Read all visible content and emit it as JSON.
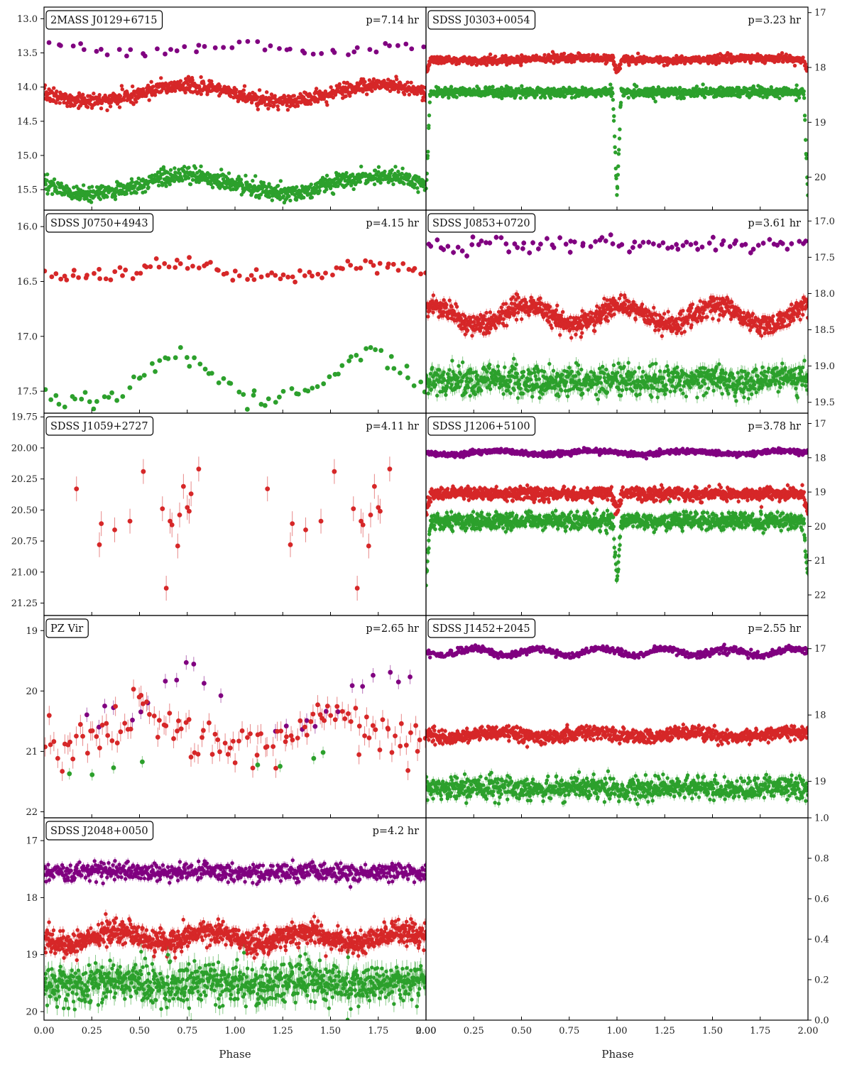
{
  "figure": {
    "xlabel": "Phase",
    "x_ticks": [
      0.0,
      0.25,
      0.5,
      0.75,
      1.0,
      1.25,
      1.5,
      1.75,
      2.0
    ],
    "colors": {
      "purple": "#800080",
      "red": "#d62728",
      "green": "#2ca02c"
    }
  },
  "chart_data": [
    {
      "type": "scatter",
      "name": "2MASS J0129+6715",
      "period": "p=7.14 hr",
      "xlim": [
        0,
        2
      ],
      "ylim": [
        15.8,
        12.83
      ],
      "y_inverted": true,
      "y_axis_side": "left",
      "y_ticks": [
        "13.0",
        "13.5",
        "14.0",
        "14.5",
        "15.0",
        "15.5"
      ],
      "errorbars": false,
      "series": [
        {
          "color": "purple",
          "model": "sine",
          "mean": 13.45,
          "amp": 0.06,
          "cycles": 1,
          "phase_offset": 0.25,
          "scatter": 0.04,
          "count": 50
        },
        {
          "color": "red",
          "model": "sine",
          "mean": 14.09,
          "amp": 0.12,
          "cycles": 1,
          "phase_offset": 0.0,
          "scatter": 0.05,
          "count": 900
        },
        {
          "color": "green",
          "model": "sine",
          "mean": 15.42,
          "amp": 0.13,
          "cycles": 1,
          "phase_offset": 0.0,
          "scatter": 0.06,
          "count": 900
        }
      ]
    },
    {
      "type": "scatter",
      "name": "SDSS J0303+0054",
      "period": "p=3.23 hr",
      "xlim": [
        0,
        2
      ],
      "ylim": [
        20.6,
        16.9
      ],
      "y_inverted": true,
      "y_axis_side": "right",
      "y_ticks": [
        "17",
        "18",
        "19",
        "20"
      ],
      "errorbars": true,
      "series": [
        {
          "color": "red",
          "model": "eclipse",
          "mean": 17.85,
          "amp": 0.02,
          "cycles": 1,
          "phase_offset": 0.0,
          "scatter": 0.035,
          "count": 1000,
          "eclipse_depth": 0.25,
          "eclipse_width": 0.025
        },
        {
          "color": "green",
          "model": "eclipse",
          "mean": 18.45,
          "amp": 0.0,
          "cycles": 1,
          "phase_offset": 0.0,
          "scatter": 0.045,
          "count": 1000,
          "eclipse_depth": 1.9,
          "eclipse_width": 0.022
        }
      ]
    },
    {
      "type": "scatter",
      "name": "SDSS J0750+4943",
      "period": "p=4.15 hr",
      "xlim": [
        0,
        2
      ],
      "ylim": [
        17.7,
        15.85
      ],
      "y_inverted": true,
      "y_axis_side": "left",
      "y_ticks": [
        "16.0",
        "16.5",
        "17.0",
        "17.5"
      ],
      "errorbars": false,
      "series": [
        {
          "color": "red",
          "model": "hump",
          "mean": 16.45,
          "amp": 0.12,
          "cycles": 1,
          "phase_offset": 0.2,
          "scatter": 0.04,
          "count": 90
        },
        {
          "color": "green",
          "model": "hump",
          "mean": 17.57,
          "amp": 0.42,
          "cycles": 1,
          "phase_offset": 0.2,
          "scatter": 0.05,
          "count": 80
        }
      ]
    },
    {
      "type": "scatter",
      "name": "SDSS J0853+0720",
      "period": "p=3.61 hr",
      "xlim": [
        0,
        2
      ],
      "ylim": [
        19.65,
        16.85
      ],
      "y_inverted": true,
      "y_axis_side": "right",
      "y_ticks": [
        "17.0",
        "17.5",
        "18.0",
        "18.5",
        "19.0",
        "19.5"
      ],
      "errorbars": true,
      "series": [
        {
          "color": "purple",
          "model": "sine",
          "mean": 17.32,
          "amp": 0.03,
          "cycles": 2,
          "phase_offset": 0.0,
          "scatter": 0.05,
          "count": 90
        },
        {
          "color": "red",
          "model": "sine",
          "mean": 18.3,
          "amp": 0.13,
          "cycles": 2,
          "phase_offset": 0.15,
          "scatter": 0.07,
          "count": 1000
        },
        {
          "color": "green",
          "model": "sine",
          "mean": 19.2,
          "amp": 0.02,
          "cycles": 2,
          "phase_offset": 0.0,
          "scatter": 0.1,
          "count": 900
        }
      ]
    },
    {
      "type": "scatter",
      "name": "SDSS J1059+2727",
      "period": "p=4.11 hr",
      "xlim": [
        0,
        2
      ],
      "ylim": [
        21.35,
        19.72
      ],
      "y_inverted": true,
      "y_axis_side": "left",
      "y_ticks": [
        "19.75",
        "20.00",
        "20.25",
        "20.50",
        "20.75",
        "21.00",
        "21.25"
      ],
      "errorbars": true,
      "series": [
        {
          "color": "red",
          "model": "points",
          "err": 0.1,
          "x": [
            0.17,
            0.29,
            0.3,
            0.37,
            0.45,
            0.52,
            0.62,
            0.64,
            0.66,
            0.67,
            0.7,
            0.71,
            0.73,
            0.75,
            0.76,
            0.77,
            0.81,
            1.17,
            1.29,
            1.3,
            1.37,
            1.45,
            1.52,
            1.62,
            1.64,
            1.66,
            1.67,
            1.7,
            1.71,
            1.73,
            1.75,
            1.76,
            1.81
          ],
          "y": [
            20.33,
            20.78,
            20.61,
            20.66,
            20.59,
            20.19,
            20.49,
            21.13,
            20.59,
            20.62,
            20.79,
            20.54,
            20.31,
            20.48,
            20.51,
            20.37,
            20.17,
            20.33,
            20.78,
            20.61,
            20.66,
            20.59,
            20.19,
            20.49,
            21.13,
            20.59,
            20.62,
            20.79,
            20.54,
            20.31,
            20.48,
            20.51,
            20.17
          ]
        }
      ]
    },
    {
      "type": "scatter",
      "name": "SDSS J1206+5100",
      "period": "p=3.78 hr",
      "xlim": [
        0,
        2
      ],
      "ylim": [
        22.6,
        16.7
      ],
      "y_inverted": true,
      "y_axis_side": "right",
      "y_ticks": [
        "17",
        "18",
        "19",
        "20",
        "21",
        "22"
      ],
      "errorbars": true,
      "series": [
        {
          "color": "purple",
          "model": "sine",
          "mean": 17.85,
          "amp": 0.05,
          "cycles": 2,
          "phase_offset": 0.0,
          "scatter": 0.035,
          "count": 900
        },
        {
          "color": "red",
          "model": "eclipse",
          "mean": 19.05,
          "amp": 0.0,
          "cycles": 1,
          "phase_offset": 0.0,
          "scatter": 0.09,
          "count": 1100,
          "eclipse_depth": 0.6,
          "eclipse_width": 0.025
        },
        {
          "color": "green",
          "model": "eclipse",
          "mean": 19.85,
          "amp": 0.0,
          "cycles": 1,
          "phase_offset": 0.0,
          "scatter": 0.12,
          "count": 1100,
          "eclipse_depth": 1.8,
          "eclipse_width": 0.022
        }
      ]
    },
    {
      "type": "scatter",
      "name": "PZ Vir",
      "period": "p=2.65 hr",
      "xlim": [
        0,
        2
      ],
      "ylim": [
        22.1,
        18.75
      ],
      "y_inverted": true,
      "y_axis_side": "left",
      "y_ticks": [
        "19",
        "20",
        "21",
        "22"
      ],
      "errorbars": true,
      "series": [
        {
          "color": "purple",
          "model": "hump",
          "mean": 20.55,
          "amp": 0.9,
          "cycles": 1,
          "phase_offset": 0.25,
          "scatter": 0.15,
          "count": 34,
          "window": [
            0.18,
            0.95
          ]
        },
        {
          "color": "red",
          "model": "hump",
          "mean": 20.9,
          "amp": 0.55,
          "cycles": 1,
          "phase_offset": 0.0,
          "scatter": 0.2,
          "count": 120
        },
        {
          "color": "green",
          "model": "hump",
          "mean": 21.4,
          "amp": 0.3,
          "cycles": 1,
          "phase_offset": 0.0,
          "scatter": 0.12,
          "count": 18,
          "window": [
            0.05,
            0.55
          ]
        }
      ]
    },
    {
      "type": "scatter",
      "name": "SDSS J1452+2045",
      "period": "p=2.55 hr",
      "xlim": [
        0,
        2
      ],
      "ylim": [
        19.55,
        16.5
      ],
      "y_inverted": true,
      "y_axis_side": "right",
      "y_ticks": [
        "17",
        "18",
        "19"
      ],
      "errorbars": true,
      "series": [
        {
          "color": "purple",
          "model": "sine",
          "mean": 17.05,
          "amp": 0.05,
          "cycles": 3,
          "phase_offset": 0.0,
          "scatter": 0.025,
          "count": 600
        },
        {
          "color": "red",
          "model": "sine",
          "mean": 18.3,
          "amp": 0.04,
          "cycles": 2,
          "phase_offset": 0.0,
          "scatter": 0.05,
          "count": 1000
        },
        {
          "color": "green",
          "model": "sine",
          "mean": 19.1,
          "amp": 0.02,
          "cycles": 2,
          "phase_offset": 0.0,
          "scatter": 0.08,
          "count": 900
        }
      ]
    },
    {
      "type": "scatter",
      "name": "SDSS J2048+0050",
      "period": "p=4.2 hr",
      "xlim": [
        0,
        2
      ],
      "ylim": [
        20.15,
        16.6
      ],
      "y_inverted": true,
      "y_axis_side": "left",
      "y_ticks": [
        "17",
        "18",
        "19",
        "20"
      ],
      "errorbars": true,
      "series": [
        {
          "color": "purple",
          "model": "sine",
          "mean": 17.55,
          "amp": 0.02,
          "cycles": 2,
          "phase_offset": 0.0,
          "scatter": 0.08,
          "count": 700
        },
        {
          "color": "red",
          "model": "sine",
          "mean": 18.7,
          "amp": 0.1,
          "cycles": 2,
          "phase_offset": 0.0,
          "scatter": 0.1,
          "count": 1100
        },
        {
          "color": "green",
          "model": "sine",
          "mean": 19.5,
          "amp": 0.05,
          "cycles": 2,
          "phase_offset": 0.0,
          "scatter": 0.18,
          "count": 900
        }
      ]
    },
    {
      "type": "scatter",
      "name": "",
      "period": "",
      "xlim": [
        0,
        2
      ],
      "ylim": [
        0.0,
        1.0
      ],
      "y_inverted": false,
      "y_axis_side": "right",
      "y_ticks": [
        "0.0",
        "0.2",
        "0.4",
        "0.6",
        "0.8",
        "1.0"
      ],
      "errorbars": false,
      "series": []
    }
  ]
}
